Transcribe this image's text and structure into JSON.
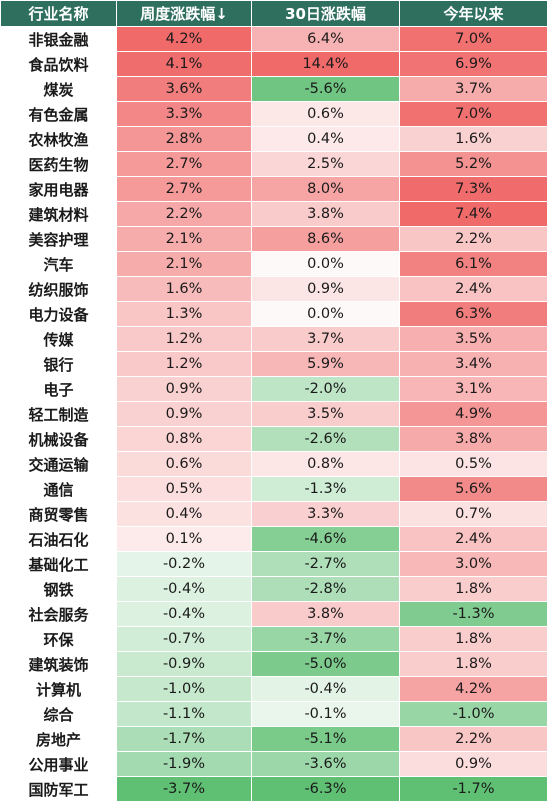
{
  "chart_data": {
    "type": "table",
    "columns": [
      "行业名称",
      "周度涨跌幅↓",
      "30日涨跌幅",
      "今年以来"
    ],
    "rows": [
      [
        "非银金融",
        "4.2%",
        "6.4%",
        "7.0%"
      ],
      [
        "食品饮料",
        "4.1%",
        "14.4%",
        "6.9%"
      ],
      [
        "煤炭",
        "3.6%",
        "-5.6%",
        "3.7%"
      ],
      [
        "有色金属",
        "3.3%",
        "0.6%",
        "7.0%"
      ],
      [
        "农林牧渔",
        "2.8%",
        "0.4%",
        "1.6%"
      ],
      [
        "医药生物",
        "2.7%",
        "2.5%",
        "5.2%"
      ],
      [
        "家用电器",
        "2.7%",
        "8.0%",
        "7.3%"
      ],
      [
        "建筑材料",
        "2.2%",
        "3.8%",
        "7.4%"
      ],
      [
        "美容护理",
        "2.1%",
        "8.6%",
        "2.2%"
      ],
      [
        "汽车",
        "2.1%",
        "0.0%",
        "6.1%"
      ],
      [
        "纺织服饰",
        "1.6%",
        "0.9%",
        "2.4%"
      ],
      [
        "电力设备",
        "1.3%",
        "0.0%",
        "6.3%"
      ],
      [
        "传媒",
        "1.2%",
        "3.7%",
        "3.5%"
      ],
      [
        "银行",
        "1.2%",
        "5.9%",
        "3.4%"
      ],
      [
        "电子",
        "0.9%",
        "-2.0%",
        "3.1%"
      ],
      [
        "轻工制造",
        "0.9%",
        "3.5%",
        "4.9%"
      ],
      [
        "机械设备",
        "0.8%",
        "-2.6%",
        "3.8%"
      ],
      [
        "交通运输",
        "0.6%",
        "0.8%",
        "0.5%"
      ],
      [
        "通信",
        "0.5%",
        "-1.3%",
        "5.6%"
      ],
      [
        "商贸零售",
        "0.4%",
        "3.3%",
        "0.7%"
      ],
      [
        "石油石化",
        "0.1%",
        "-4.6%",
        "2.4%"
      ],
      [
        "基础化工",
        "-0.2%",
        "-2.7%",
        "3.0%"
      ],
      [
        "钢铁",
        "-0.4%",
        "-2.8%",
        "1.8%"
      ],
      [
        "社会服务",
        "-0.4%",
        "3.8%",
        "-1.3%"
      ],
      [
        "环保",
        "-0.7%",
        "-3.7%",
        "1.8%"
      ],
      [
        "建筑装饰",
        "-0.9%",
        "-5.0%",
        "1.8%"
      ],
      [
        "计算机",
        "-1.0%",
        "-0.4%",
        "4.2%"
      ],
      [
        "综合",
        "-1.1%",
        "-0.1%",
        "-1.0%"
      ],
      [
        "房地产",
        "-1.7%",
        "-5.1%",
        "2.2%"
      ],
      [
        "公用事业",
        "-1.9%",
        "-3.6%",
        "0.9%"
      ],
      [
        "国防军工",
        "-3.7%",
        "-6.3%",
        "-1.7%"
      ]
    ],
    "colors": {
      "header_bg": "#2f6f5e",
      "header_text": "#ffffff",
      "positive_max": "#f06a6a",
      "negative_max": "#5fbf73",
      "neutral": "#ffffff"
    }
  }
}
